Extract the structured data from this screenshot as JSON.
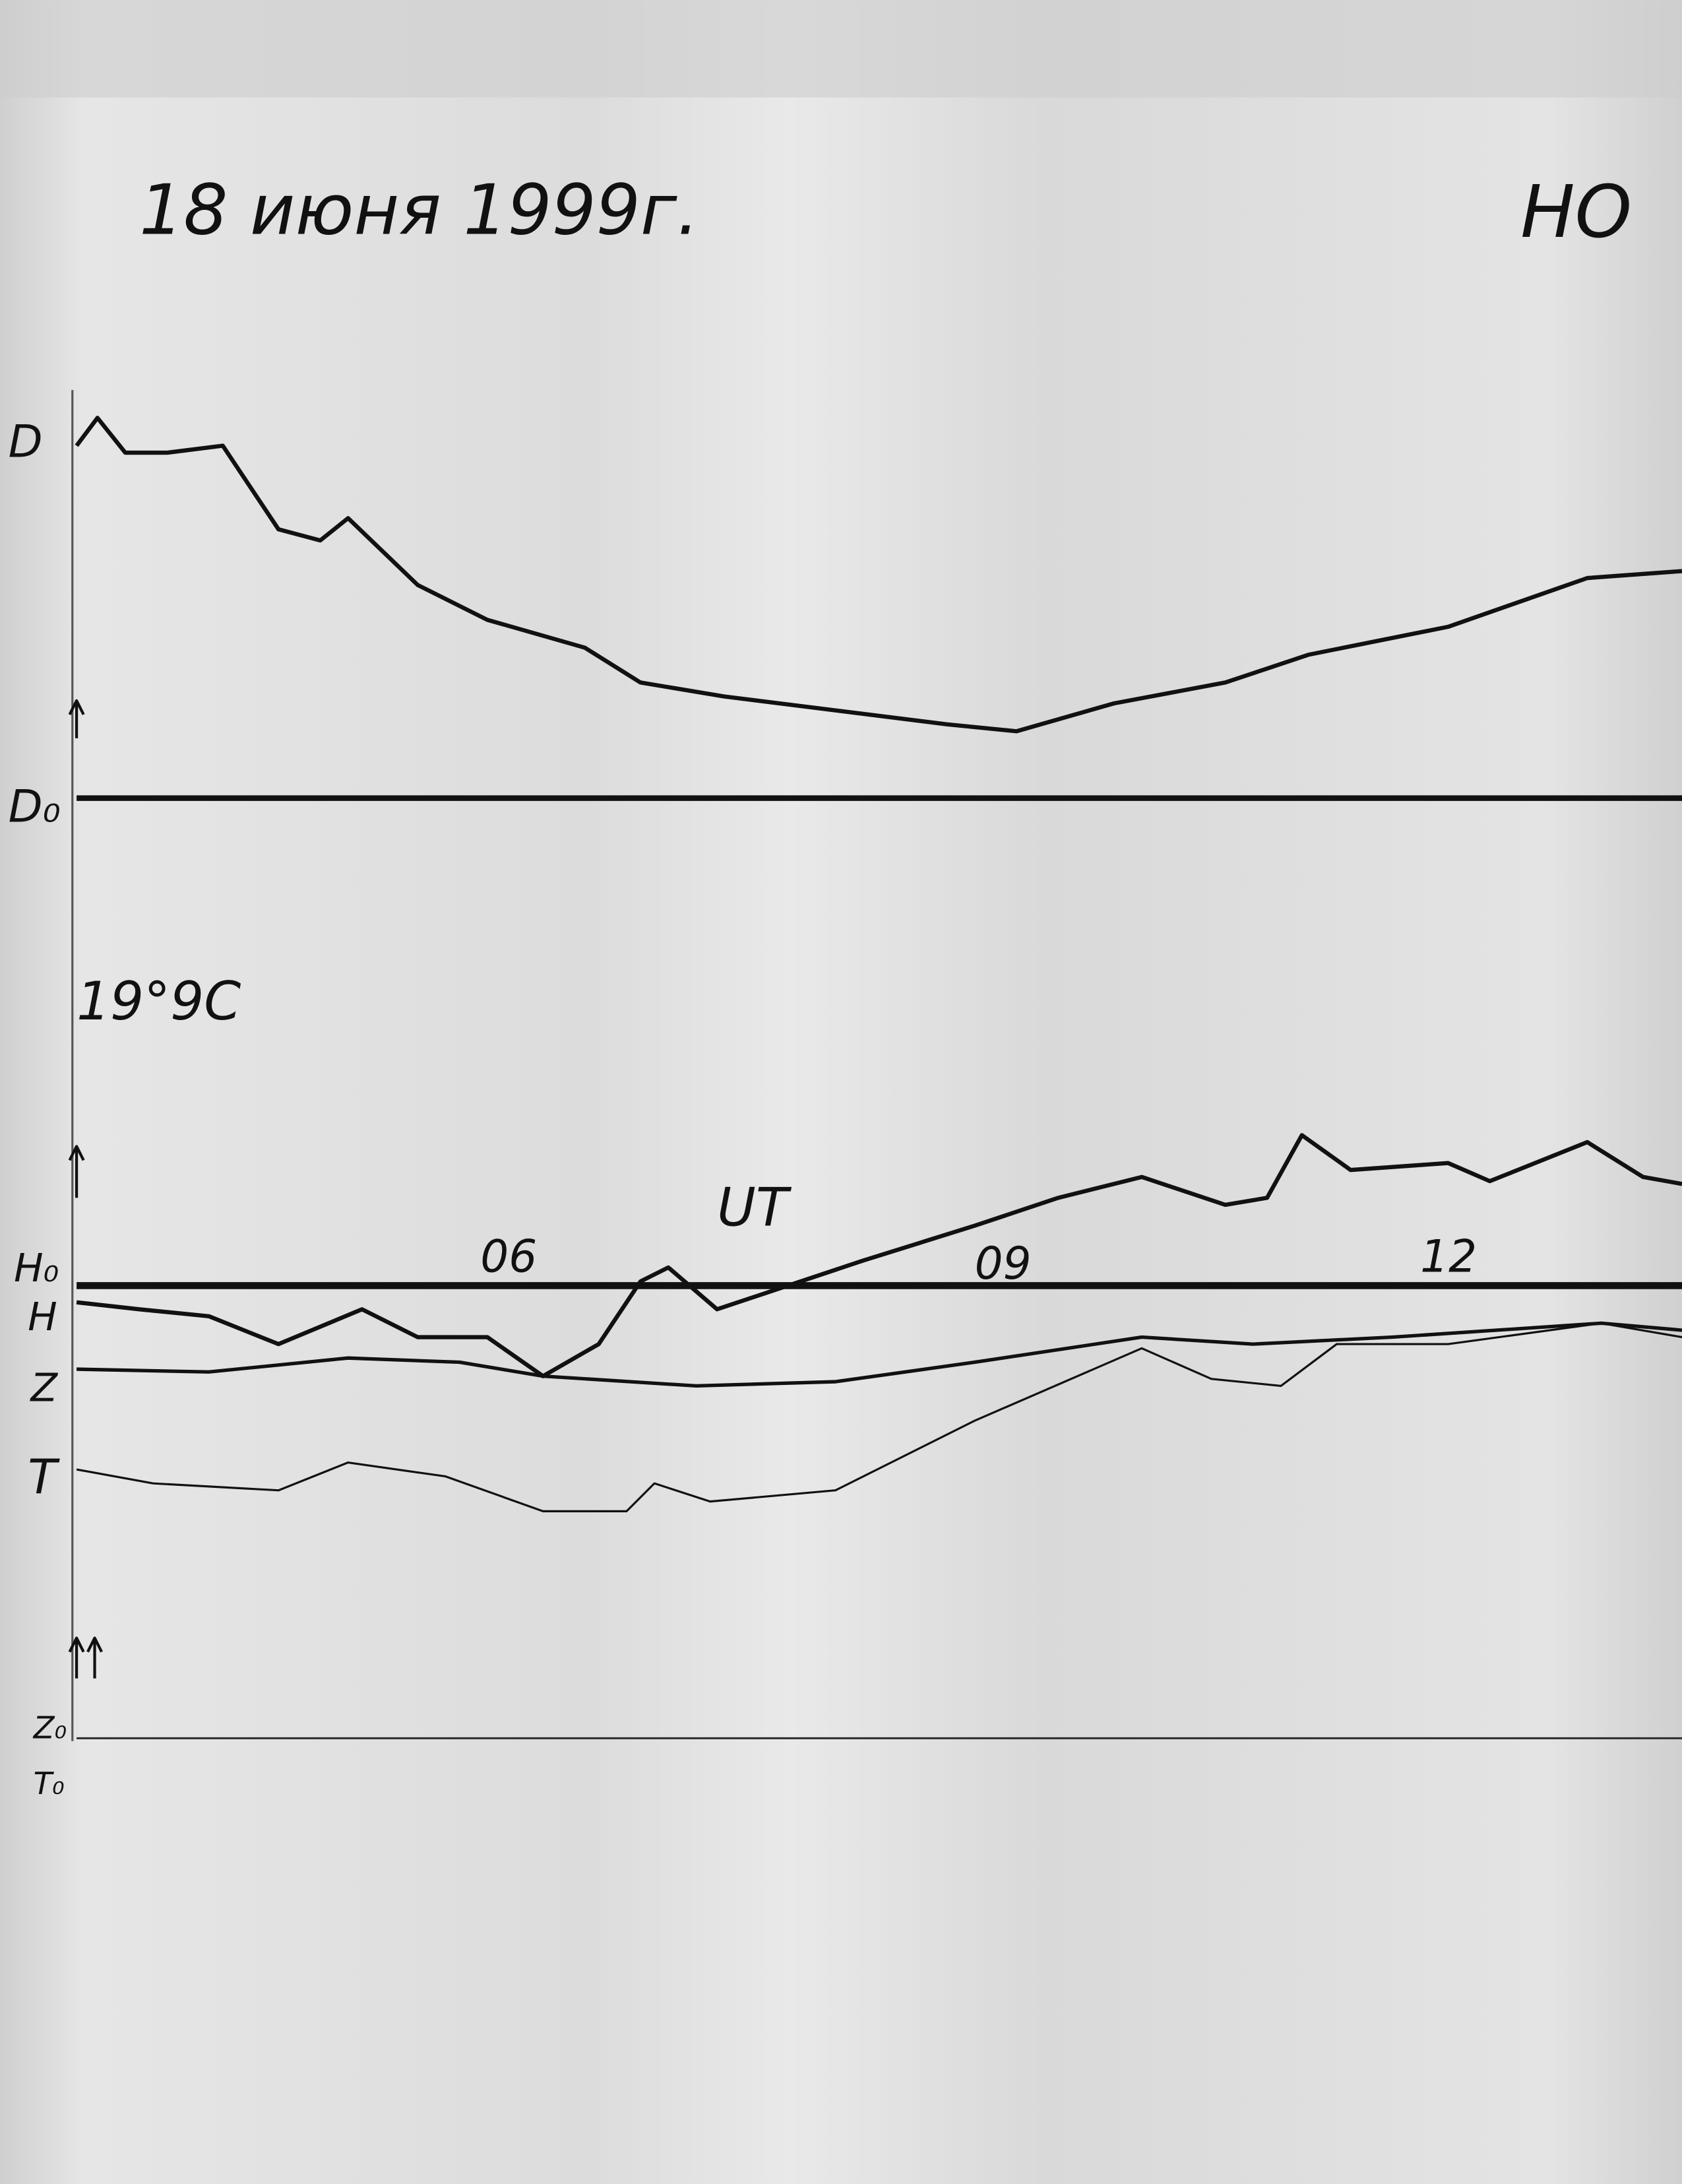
{
  "header": {
    "date": "18 июня 1999г.",
    "station": "НО"
  },
  "labels": {
    "d": "D",
    "d0": "D₀",
    "temperature": "19°9C",
    "h0": "H₀",
    "h": "H",
    "z": "Z",
    "t": "T",
    "z0": "Z₀",
    "t0": "T₀"
  },
  "time_axis": {
    "unit": "UT",
    "ticks": [
      "06",
      "09",
      "12"
    ]
  }
}
